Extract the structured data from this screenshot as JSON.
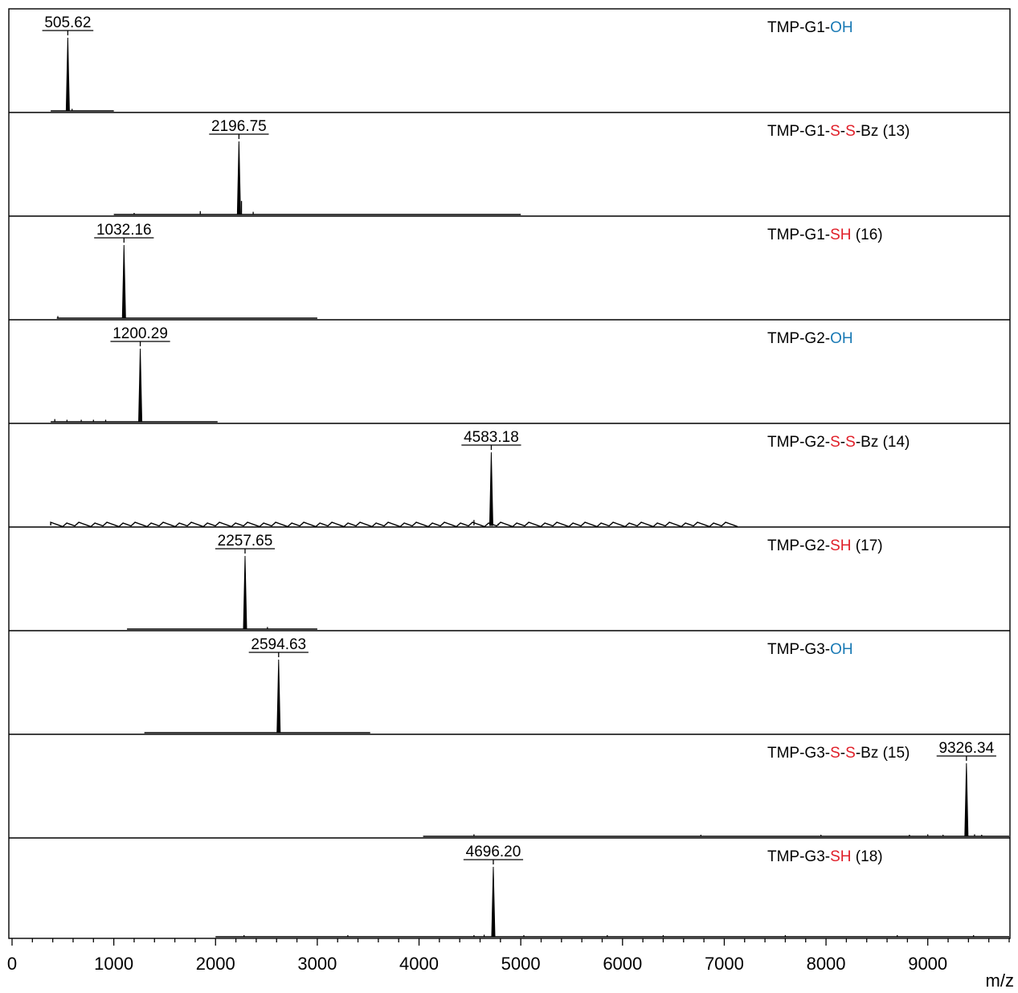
{
  "chart_data": {
    "type": "line",
    "title": "",
    "xlabel": "m/z",
    "ylabel": "",
    "xlim": [
      0,
      9800
    ],
    "x_ticks": [
      "0",
      "1000",
      "2000",
      "3000",
      "4000",
      "5000",
      "6000",
      "7000",
      "8000",
      "9000"
    ],
    "grid": false,
    "legend": "none",
    "colors": {
      "OH": "#1a7ab5",
      "S": "#e0202a",
      "SH": "#e0202a",
      "text": "#000000",
      "line": "#000000"
    },
    "series": [
      {
        "name_parts": [
          {
            "text": "TMP-G1-",
            "color": "text"
          },
          {
            "text": "OH",
            "color": "OH"
          }
        ],
        "peak_label": "505.62",
        "peak_mz": 548,
        "range": [
          380,
          1000
        ],
        "noise": false,
        "minor": [
          [
            590,
            0.03
          ]
        ]
      },
      {
        "name_parts": [
          {
            "text": "TMP-G1-",
            "color": "text"
          },
          {
            "text": "S",
            "color": "S"
          },
          {
            "text": "-",
            "color": "text"
          },
          {
            "text": "S",
            "color": "S"
          },
          {
            "text": "-Bz (13)",
            "color": "text"
          }
        ],
        "peak_label": "2196.75",
        "peak_mz": 2230,
        "range": [
          1000,
          5000
        ],
        "noise": false,
        "minor": [
          [
            2255,
            0.2
          ],
          [
            1850,
            0.05
          ],
          [
            2370,
            0.04
          ],
          [
            1200,
            0.02
          ]
        ]
      },
      {
        "name_parts": [
          {
            "text": "TMP-G1-",
            "color": "text"
          },
          {
            "text": "SH",
            "color": "SH"
          },
          {
            "text": " (16)",
            "color": "text"
          }
        ],
        "peak_label": "1032.16",
        "peak_mz": 1100,
        "range": [
          440,
          3000
        ],
        "noise": false,
        "minor": [
          [
            450,
            0.03
          ]
        ]
      },
      {
        "name_parts": [
          {
            "text": "TMP-G2-",
            "color": "text"
          },
          {
            "text": "OH",
            "color": "OH"
          }
        ],
        "peak_label": "1200.29",
        "peak_mz": 1260,
        "range": [
          380,
          2020
        ],
        "noise": false,
        "minor": [
          [
            420,
            0.04
          ],
          [
            540,
            0.03
          ],
          [
            680,
            0.03
          ],
          [
            800,
            0.03
          ],
          [
            920,
            0.03
          ]
        ]
      },
      {
        "name_parts": [
          {
            "text": "TMP-G2-",
            "color": "text"
          },
          {
            "text": "S",
            "color": "S"
          },
          {
            "text": "-",
            "color": "text"
          },
          {
            "text": "S",
            "color": "S"
          },
          {
            "text": "-Bz (14)",
            "color": "text"
          }
        ],
        "peak_label": "4583.18",
        "peak_mz": 4710,
        "range": [
          380,
          7150
        ],
        "noise": true,
        "minor": [
          [
            4540,
            0.08
          ],
          [
            4780,
            0.03
          ]
        ]
      },
      {
        "name_parts": [
          {
            "text": "TMP-G2-",
            "color": "text"
          },
          {
            "text": "SH",
            "color": "SH"
          },
          {
            "text": " (17)",
            "color": "text"
          }
        ],
        "peak_label": "2257.65",
        "peak_mz": 2290,
        "range": [
          1130,
          3000
        ],
        "noise": false,
        "minor": [
          [
            2510,
            0.03
          ]
        ]
      },
      {
        "name_parts": [
          {
            "text": "TMP-G3-",
            "color": "text"
          },
          {
            "text": "OH",
            "color": "OH"
          }
        ],
        "peak_label": "2594.63",
        "peak_mz": 2620,
        "range": [
          1300,
          3520
        ],
        "noise": false,
        "minor": []
      },
      {
        "name_parts": [
          {
            "text": "TMP-G3-",
            "color": "text"
          },
          {
            "text": "S",
            "color": "S"
          },
          {
            "text": "-",
            "color": "text"
          },
          {
            "text": "S",
            "color": "S"
          },
          {
            "text": "-Bz (15)",
            "color": "text"
          }
        ],
        "peak_label": "9326.34",
        "peak_mz": 9380,
        "range": [
          4040,
          9800
        ],
        "noise": false,
        "minor": [
          [
            4540,
            0.03
          ],
          [
            6770,
            0.02
          ],
          [
            7950,
            0.02
          ],
          [
            8820,
            0.02
          ],
          [
            9000,
            0.03
          ],
          [
            9150,
            0.02
          ],
          [
            9460,
            0.03
          ],
          [
            9530,
            0.02
          ]
        ]
      },
      {
        "name_parts": [
          {
            "text": "TMP-G3-",
            "color": "text"
          },
          {
            "text": "SH",
            "color": "SH"
          },
          {
            "text": " (18)",
            "color": "text"
          }
        ],
        "peak_label": "4696.20",
        "peak_mz": 4730,
        "range": [
          2000,
          9800
        ],
        "noise": false,
        "minor": [
          [
            2280,
            0.02
          ],
          [
            3300,
            0.02
          ],
          [
            4540,
            0.02
          ],
          [
            4640,
            0.03
          ],
          [
            5030,
            0.02
          ],
          [
            5850,
            0.02
          ],
          [
            6400,
            0.02
          ],
          [
            7600,
            0.02
          ],
          [
            8700,
            0.02
          ],
          [
            9450,
            0.02
          ]
        ]
      }
    ]
  }
}
